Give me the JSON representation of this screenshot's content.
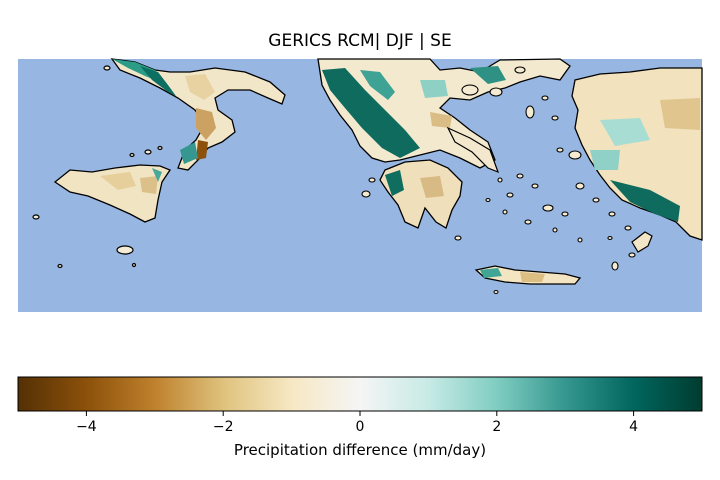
{
  "title": "GERICS RCM| DJF | SE",
  "colorbar": {
    "label": "Precipitation difference (mm/day)",
    "min": -5,
    "max": 5,
    "ticks": [
      {
        "value": -4,
        "label": "−4"
      },
      {
        "value": -2,
        "label": "−2"
      },
      {
        "value": 0,
        "label": "0"
      },
      {
        "value": 2,
        "label": "2"
      },
      {
        "value": 4,
        "label": "4"
      }
    ],
    "colormap": "BrBG",
    "stops": [
      "#543005",
      "#8c510a",
      "#bf812d",
      "#dfc27d",
      "#f6e8c3",
      "#f5f5f5",
      "#c7eae5",
      "#80cdc1",
      "#35978f",
      "#01665e",
      "#003c30"
    ]
  },
  "colors": {
    "sea": "#97b6e1",
    "coast": "#000000"
  }
}
